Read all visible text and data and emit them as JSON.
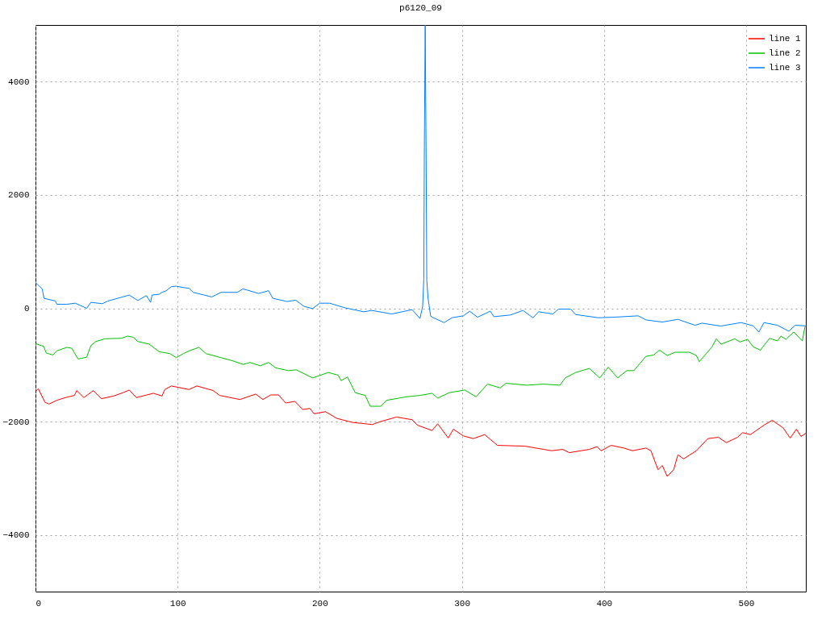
{
  "chart_data": {
    "type": "line",
    "title": "p6120_09",
    "xlim": [
      0,
      542
    ],
    "xticks": [
      0,
      100,
      200,
      300,
      400,
      500
    ],
    "ylim": [
      -5000,
      5000
    ],
    "yticks": [
      -4000,
      -2000,
      0,
      2000,
      4000
    ],
    "grid": true,
    "legend": "top right",
    "series": [
      {
        "name": "line 1",
        "color": "#ff0000",
        "x": [
          0,
          2,
          6.6,
          9.5,
          15,
          21,
          27.4,
          29,
          34,
          40.7,
          46.4,
          55,
          61.5,
          66,
          71,
          83,
          89,
          91,
          95.5,
          108,
          113.5,
          125,
          129.6,
          143.8,
          155,
          160,
          165.5,
          171,
          176,
          182.5,
          188,
          193,
          196,
          204,
          212,
          223,
          237,
          242,
          254,
          265,
          268.6,
          279,
          283,
          290.4,
          294,
          301,
          308,
          316,
          325,
          344.3,
          357.5,
          363,
          371,
          375.5,
          389.7,
          395,
          398,
          405,
          414,
          420,
          429.5,
          433,
          438,
          441,
          444.5,
          449,
          452,
          456,
          465,
          473,
          480.5,
          486,
          494,
          497.5,
          503,
          512.6,
          518.3,
          526,
          531,
          535.4,
          538.6,
          542
        ],
        "values": [
          -1467,
          -1419,
          -1657,
          -1690,
          -1624,
          -1576,
          -1538,
          -1452,
          -1576,
          -1452,
          -1595,
          -1548,
          -1490,
          -1443,
          -1576,
          -1500,
          -1548,
          -1433,
          -1371,
          -1433,
          -1371,
          -1452,
          -1538,
          -1610,
          -1514,
          -1610,
          -1529,
          -1529,
          -1671,
          -1643,
          -1786,
          -1767,
          -1862,
          -1824,
          -1943,
          -2014,
          -2052,
          -2005,
          -1919,
          -1967,
          -2062,
          -2157,
          -2038,
          -2290,
          -2133,
          -2252,
          -2300,
          -2229,
          -2419,
          -2433,
          -2490,
          -2514,
          -2490,
          -2548,
          -2490,
          -2443,
          -2514,
          -2419,
          -2467,
          -2514,
          -2467,
          -2514,
          -2848,
          -2776,
          -2967,
          -2848,
          -2586,
          -2657,
          -2514,
          -2300,
          -2276,
          -2371,
          -2276,
          -2195,
          -2229,
          -2062,
          -1976,
          -2110,
          -2290,
          -2133,
          -2262,
          -2205
        ]
      },
      {
        "name": "line 2",
        "color": "#00c000",
        "x": [
          0,
          5.7,
          7.6,
          12.3,
          15,
          22,
          25.5,
          30,
          36,
          39,
          42.5,
          49,
          60.5,
          65,
          69,
          72,
          80,
          87,
          94.6,
          99,
          104,
          108,
          115,
          120,
          130.5,
          139,
          146,
          151,
          158,
          164,
          169,
          178,
          183.5,
          195,
          206,
          213,
          215,
          219.5,
          225,
          232,
          235.5,
          243,
          247,
          261,
          270.5,
          279,
          283,
          291,
          302,
          310,
          318,
          327,
          331,
          346,
          357.5,
          369,
          372.7,
          380,
          389.7,
          397,
          403,
          409.6,
          416,
          421,
          429.5,
          435,
          439,
          444.5,
          450,
          460,
          465,
          467,
          476,
          479,
          482.4,
          492,
          495.6,
          501,
          505,
          510,
          516.5,
          522,
          524.5,
          528,
          533.5,
          539.5,
          541.4
        ],
        "values": [
          -624,
          -671,
          -790,
          -824,
          -752,
          -690,
          -705,
          -895,
          -862,
          -657,
          -586,
          -538,
          -529,
          -490,
          -514,
          -586,
          -633,
          -767,
          -800,
          -871,
          -800,
          -752,
          -690,
          -800,
          -871,
          -929,
          -990,
          -957,
          -1014,
          -957,
          -1052,
          -1100,
          -1086,
          -1229,
          -1133,
          -1181,
          -1276,
          -1214,
          -1490,
          -1538,
          -1729,
          -1729,
          -1624,
          -1562,
          -1538,
          -1500,
          -1586,
          -1490,
          -1443,
          -1562,
          -1338,
          -1405,
          -1324,
          -1357,
          -1338,
          -1357,
          -1229,
          -1133,
          -1062,
          -1229,
          -1038,
          -1229,
          -1100,
          -1100,
          -848,
          -824,
          -738,
          -833,
          -776,
          -776,
          -833,
          -943,
          -681,
          -538,
          -633,
          -538,
          -595,
          -548,
          -681,
          -738,
          -529,
          -576,
          -490,
          -548,
          -419,
          -576,
          -324
        ]
      },
      {
        "name": "line 3",
        "color": "#0080ff",
        "x": [
          0,
          4.7,
          6,
          14,
          15,
          22,
          28,
          36,
          39,
          47,
          51,
          66,
          72,
          78,
          81,
          82,
          87,
          89,
          92,
          95.5,
          99,
          104,
          108,
          111,
          124,
          130.5,
          142,
          146,
          157,
          164,
          167,
          177,
          183,
          189,
          195,
          200,
          207,
          217.5,
          231,
          236.5,
          250.7,
          265,
          270.5,
          272.4,
          273.2,
          273.6,
          274.2,
          274.8,
          275.3,
          276.2,
          278,
          279,
          287.5,
          293,
          301,
          305.5,
          311,
          320,
          322.5,
          334,
          343,
          350,
          354,
          364,
          368,
          376.5,
          380,
          396,
          407,
          424,
          429.5,
          441,
          452,
          464,
          469,
          482,
          496.5,
          505,
          509,
          512.5,
          522,
          530,
          534.5,
          542
        ],
        "values": [
          453,
          343,
          176,
          129,
          71,
          71,
          90,
          0,
          105,
          81,
          129,
          233,
          138,
          224,
          105,
          233,
          248,
          281,
          310,
          381,
          390,
          367,
          352,
          281,
          200,
          281,
          281,
          343,
          262,
          310,
          176,
          119,
          143,
          33,
          -5,
          90,
          90,
          10,
          -62,
          -38,
          -100,
          -24,
          -181,
          33,
          510,
          2850,
          5000,
          2850,
          500,
          176,
          -133,
          -157,
          -252,
          -167,
          -133,
          -52,
          -157,
          -52,
          -148,
          -119,
          -38,
          -167,
          -62,
          -100,
          -14,
          -14,
          -110,
          -167,
          -157,
          -133,
          -205,
          -243,
          -195,
          -300,
          -262,
          -314,
          -252,
          -310,
          -419,
          -252,
          -300,
          -405,
          -300,
          -310
        ]
      }
    ]
  }
}
